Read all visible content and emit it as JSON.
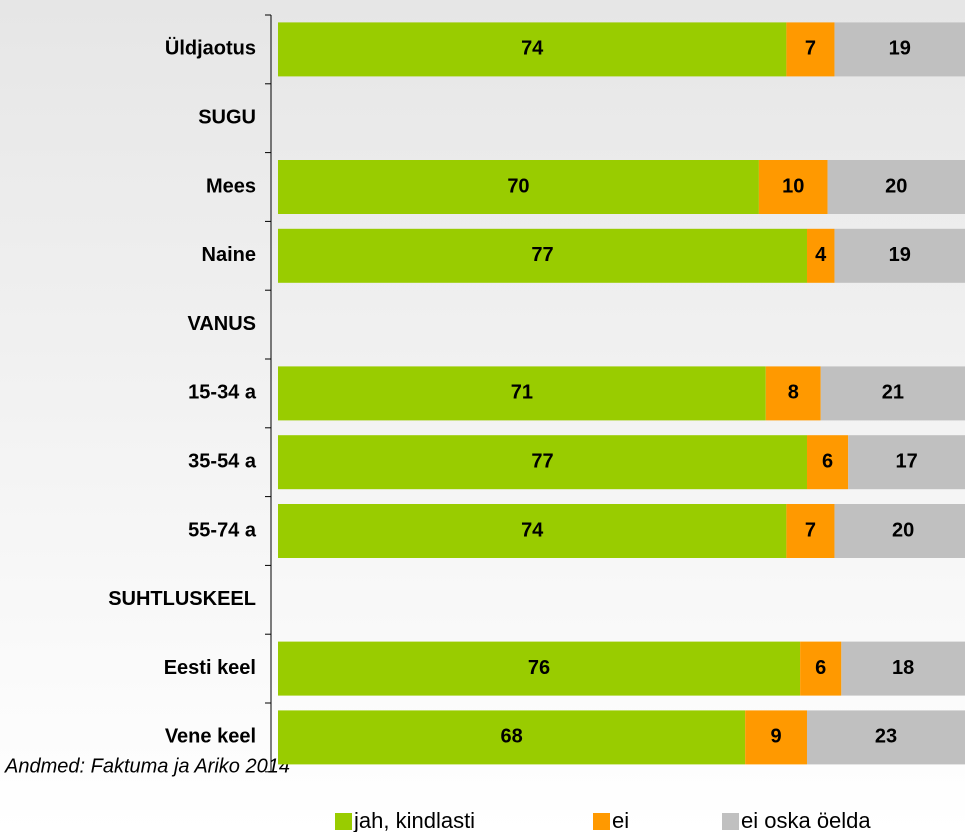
{
  "chart_data": {
    "type": "stacked-bar-horizontal",
    "source": "Andmed: Faktuma ja Ariko 2014",
    "categories": [
      "Üldjaotus",
      "SUGU",
      "Mees",
      "Naine",
      "VANUS",
      "15-34 a",
      "35-54 a",
      "55-74 a",
      "SUHTLUSKEEL",
      "Eesti keel",
      "Vene keel"
    ],
    "series": [
      {
        "name": "jah, kindlasti",
        "color": "#99cc00",
        "values": [
          74,
          null,
          70,
          77,
          null,
          71,
          77,
          74,
          null,
          76,
          68
        ]
      },
      {
        "name": "ei",
        "color": "#ff9900",
        "values": [
          7,
          null,
          10,
          4,
          null,
          8,
          6,
          7,
          null,
          6,
          9
        ]
      },
      {
        "name": "ei oska öelda",
        "color": "#c0c0c0",
        "values": [
          19,
          null,
          20,
          19,
          null,
          21,
          17,
          20,
          null,
          18,
          23
        ]
      }
    ],
    "xlim": [
      0,
      100
    ],
    "legend": "bottom"
  }
}
